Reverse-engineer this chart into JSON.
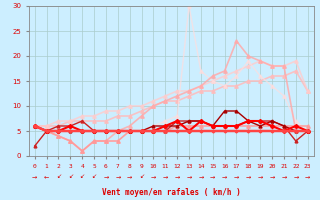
{
  "xlabel": "Vent moyen/en rafales ( km/h )",
  "background_color": "#cceeff",
  "grid_color": "#aacccc",
  "text_color": "#dd0000",
  "x": [
    0,
    1,
    2,
    3,
    4,
    5,
    6,
    7,
    8,
    9,
    10,
    11,
    12,
    13,
    14,
    15,
    16,
    17,
    18,
    19,
    20,
    21,
    22,
    23
  ],
  "ylim": [
    0,
    30
  ],
  "yticks": [
    0,
    5,
    10,
    15,
    20,
    25,
    30
  ],
  "series": [
    {
      "y": [
        6,
        5,
        4,
        3,
        1,
        3,
        3,
        3,
        5,
        5,
        5,
        5,
        6,
        6,
        6,
        6,
        6,
        6,
        6,
        6,
        6,
        6,
        6,
        6
      ],
      "color": "#ff9999",
      "lw": 1.2,
      "marker": "^",
      "ms": 2.5,
      "alpha": 0.9,
      "zorder": 3
    },
    {
      "y": [
        6,
        6,
        6,
        7,
        7,
        7,
        7,
        8,
        8,
        9,
        10,
        11,
        11,
        12,
        13,
        13,
        14,
        14,
        15,
        15,
        16,
        16,
        17,
        13
      ],
      "color": "#ffbbbb",
      "lw": 1.2,
      "marker": "^",
      "ms": 2.5,
      "alpha": 0.85,
      "zorder": 2
    },
    {
      "y": [
        6,
        6,
        7,
        7,
        8,
        8,
        9,
        9,
        10,
        10,
        11,
        12,
        13,
        13,
        14,
        15,
        16,
        17,
        18,
        19,
        18,
        18,
        19,
        13
      ],
      "color": "#ffcccc",
      "lw": 1.2,
      "marker": "^",
      "ms": 2.5,
      "alpha": 0.8,
      "zorder": 2
    },
    {
      "y": [
        6,
        5,
        4,
        3,
        1,
        3,
        3,
        3,
        5,
        5,
        6,
        7,
        8,
        30,
        17,
        15,
        14,
        16,
        19,
        16,
        14,
        12,
        7,
        5
      ],
      "color": "#ffdddd",
      "lw": 1.0,
      "marker": "^",
      "ms": 2.5,
      "alpha": 0.7,
      "zorder": 2
    },
    {
      "y": [
        6,
        5,
        4,
        3,
        1,
        3,
        3,
        5,
        6,
        8,
        10,
        11,
        12,
        13,
        14,
        16,
        17,
        23,
        20,
        19,
        18,
        18,
        5,
        5
      ],
      "color": "#ffaaaa",
      "lw": 1.2,
      "marker": "^",
      "ms": 2.5,
      "alpha": 0.85,
      "zorder": 2
    },
    {
      "y": [
        2,
        5,
        6,
        6,
        7,
        5,
        5,
        5,
        5,
        5,
        5,
        5,
        7,
        7,
        7,
        6,
        6,
        6,
        7,
        7,
        7,
        6,
        3,
        5
      ],
      "color": "#cc2222",
      "lw": 1.0,
      "marker": "^",
      "ms": 2.0,
      "alpha": 1.0,
      "zorder": 4
    },
    {
      "y": [
        6,
        5,
        5,
        5,
        5,
        5,
        5,
        5,
        5,
        5,
        6,
        6,
        6,
        7,
        7,
        6,
        9,
        9,
        7,
        6,
        7,
        6,
        5,
        5
      ],
      "color": "#aa0000",
      "lw": 1.0,
      "marker": "^",
      "ms": 2.0,
      "alpha": 1.0,
      "zorder": 4
    },
    {
      "y": [
        6,
        5,
        5,
        6,
        5,
        5,
        5,
        5,
        5,
        5,
        5,
        6,
        7,
        5,
        7,
        6,
        6,
        6,
        7,
        7,
        6,
        5,
        6,
        5
      ],
      "color": "#ff0000",
      "lw": 1.5,
      "marker": "D",
      "ms": 2.0,
      "alpha": 1.0,
      "zorder": 5
    },
    {
      "y": [
        6,
        5,
        5,
        5,
        5,
        5,
        5,
        5,
        5,
        5,
        5,
        5,
        5,
        5,
        5,
        5,
        5,
        5,
        5,
        5,
        5,
        5,
        5,
        5
      ],
      "color": "#ff4444",
      "lw": 1.8,
      "marker": "D",
      "ms": 1.5,
      "alpha": 1.0,
      "zorder": 5
    }
  ],
  "wind_dirs": [
    "r",
    "l",
    "dl",
    "dl",
    "dl",
    "dl",
    "r",
    "r",
    "r",
    "dl",
    "r",
    "r",
    "r",
    "r",
    "r",
    "r",
    "r",
    "r",
    "r",
    "r",
    "r",
    "r",
    "r",
    "r"
  ]
}
